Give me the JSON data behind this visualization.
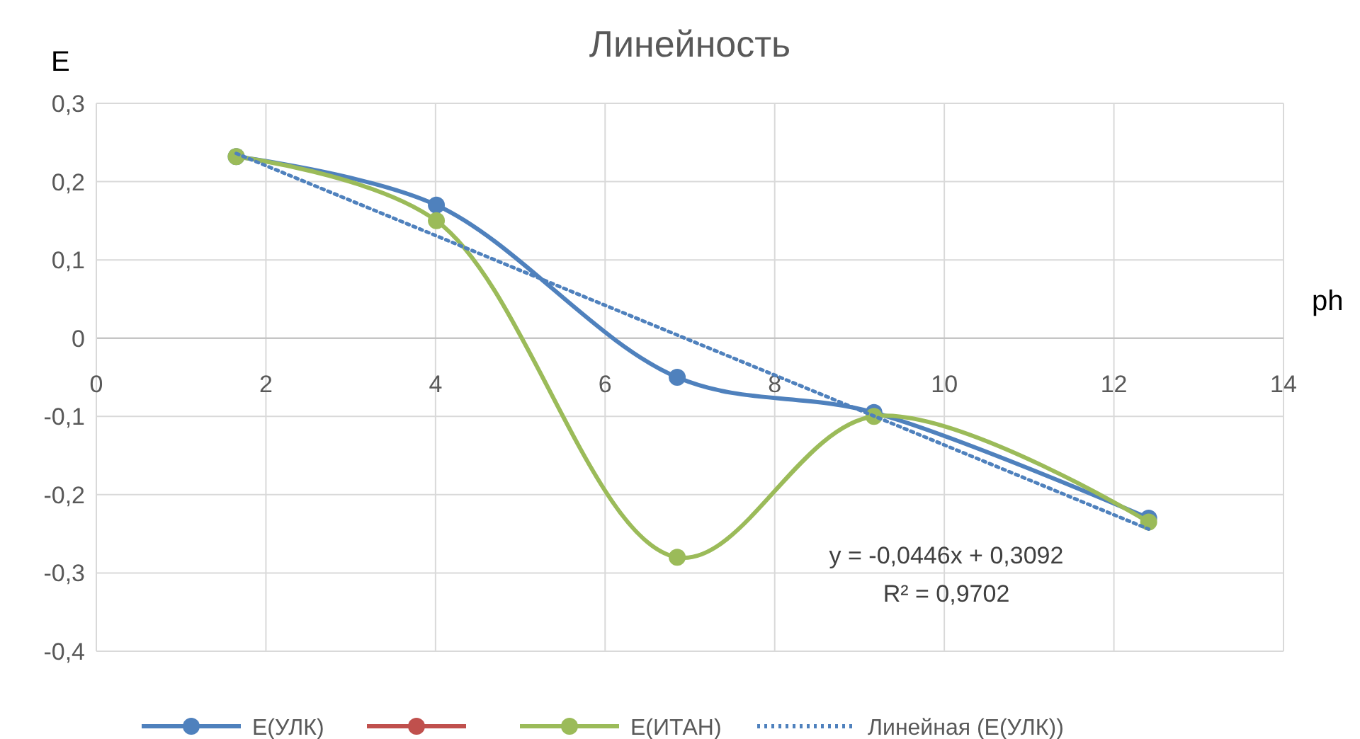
{
  "chart_data": {
    "type": "line",
    "title": "Линейность",
    "xlabel": "ph",
    "ylabel": "Е",
    "x": [
      1.65,
      4.01,
      6.85,
      9.17,
      12.41
    ],
    "series": [
      {
        "name": "Е(УЛК)",
        "color": "#4f81bd",
        "values": [
          0.232,
          0.17,
          -0.05,
          -0.095,
          -0.23
        ]
      },
      {
        "color": "#c0504d",
        "values": [
          null,
          null,
          null,
          null,
          null
        ]
      },
      {
        "name": "Е(ИТАН)",
        "color": "#9bbb59",
        "values": [
          0.232,
          0.15,
          -0.28,
          -0.1,
          -0.235
        ]
      },
      {
        "name": "Линейная (Е(УЛК))",
        "type": "line",
        "color": "#4f81bd",
        "line_style": "dotted",
        "marker": "none",
        "x": [
          1.65,
          12.41
        ],
        "values": [
          0.236,
          -0.244
        ]
      }
    ],
    "xlim": [
      0,
      14
    ],
    "xticks": [
      0,
      2,
      4,
      6,
      8,
      10,
      12,
      14
    ],
    "ylim": [
      -0.4,
      0.3
    ],
    "yticks": [
      {
        "value": -0.4,
        "label": "-0,4"
      },
      {
        "value": -0.3,
        "label": "-0,3"
      },
      {
        "value": -0.2,
        "label": "-0,2"
      },
      {
        "value": -0.1,
        "label": "-0,1"
      },
      {
        "value": 0,
        "label": "0"
      },
      {
        "value": 0.1,
        "label": "0,1"
      },
      {
        "value": 0.2,
        "label": "0,2"
      },
      {
        "value": 0.3,
        "label": "0,3"
      }
    ],
    "grid": true,
    "legend": "bottom",
    "marker": "circle",
    "line_style": "solid",
    "annotations": [
      "y = -0,0446x + 0,3092",
      "R² = 0,9702"
    ]
  }
}
